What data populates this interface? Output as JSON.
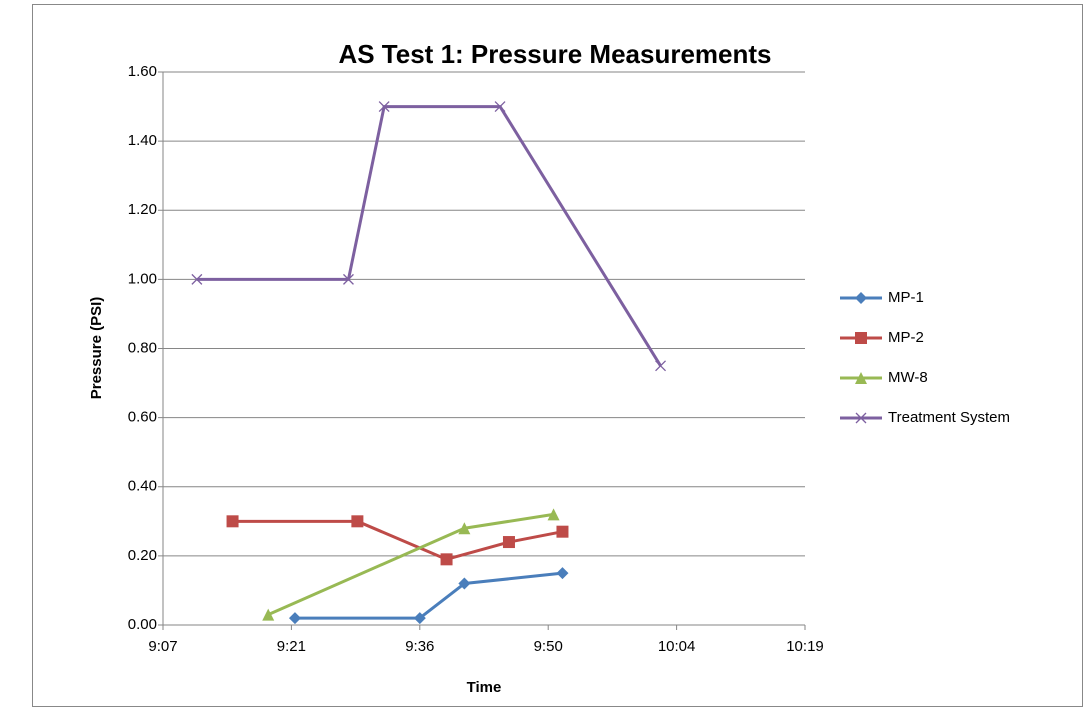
{
  "chart_data": {
    "type": "line",
    "title": "AS Test 1: Pressure Measurements",
    "x_label": "Time",
    "y_label": "Pressure (PSI)",
    "xlim": [
      547.2,
      619.2
    ],
    "xticks": [
      {
        "value": 547.2,
        "label": "9:07"
      },
      {
        "value": 561.6,
        "label": "9:21"
      },
      {
        "value": 576,
        "label": "9:36"
      },
      {
        "value": 590.4,
        "label": "9:50"
      },
      {
        "value": 604.8,
        "label": "10:04"
      },
      {
        "value": 619.2,
        "label": "10:19"
      }
    ],
    "ylim": [
      0,
      1.6
    ],
    "yticks": [
      {
        "value": 0,
        "label": "0.00"
      },
      {
        "value": 0.2,
        "label": "0.20"
      },
      {
        "value": 0.4,
        "label": "0.40"
      },
      {
        "value": 0.6,
        "label": "0.60"
      },
      {
        "value": 0.8,
        "label": "0.80"
      },
      {
        "value": 1.0,
        "label": "1.00"
      },
      {
        "value": 1.2,
        "label": "1.20"
      },
      {
        "value": 1.4,
        "label": "1.40"
      },
      {
        "value": 1.6,
        "label": "1.60"
      }
    ],
    "grid": true,
    "legend": "right",
    "series": [
      {
        "name": "MP-1",
        "color": "#4a7ebb",
        "marker": "diamond",
        "x": [
          562,
          576,
          581,
          592
        ],
        "values": [
          0.02,
          0.02,
          0.12,
          0.15
        ]
      },
      {
        "name": "MP-2",
        "color": "#be4b48",
        "marker": "square",
        "x": [
          555,
          569,
          579,
          586,
          592
        ],
        "values": [
          0.3,
          0.3,
          0.19,
          0.24,
          0.27
        ]
      },
      {
        "name": "MW-8",
        "color": "#98b954",
        "marker": "triangle",
        "x": [
          559,
          581,
          591
        ],
        "values": [
          0.03,
          0.28,
          0.32
        ]
      },
      {
        "name": "Treatment System",
        "color": "#7d60a0",
        "marker": "x",
        "x": [
          551,
          568,
          572,
          585,
          603
        ],
        "values": [
          1.0,
          1.0,
          1.5,
          1.5,
          0.75
        ]
      }
    ]
  }
}
